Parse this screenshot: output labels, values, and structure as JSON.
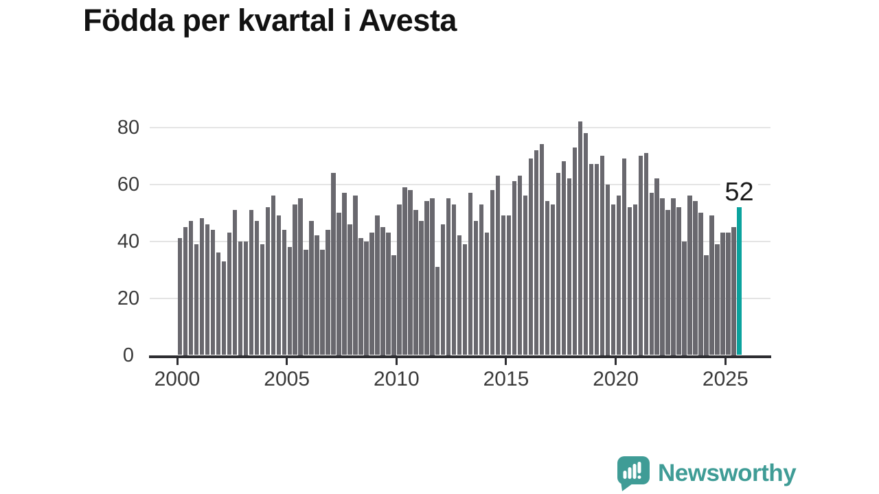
{
  "title": "Födda per kvartal i Avesta",
  "chart_data": {
    "type": "bar",
    "title": "Födda per kvartal i Avesta",
    "start_period": "2000-Q1",
    "end_period": "2025-Q3",
    "frequency": "quarterly",
    "values": [
      41,
      45,
      47,
      39,
      48,
      46,
      44,
      36,
      33,
      43,
      51,
      40,
      40,
      51,
      47,
      39,
      52,
      56,
      49,
      44,
      38,
      53,
      55,
      37,
      47,
      42,
      37,
      44,
      64,
      50,
      57,
      46,
      56,
      41,
      40,
      43,
      49,
      45,
      43,
      35,
      53,
      59,
      58,
      51,
      47,
      54,
      55,
      31,
      46,
      55,
      53,
      42,
      39,
      57,
      47,
      53,
      43,
      58,
      63,
      49,
      49,
      61,
      63,
      56,
      69,
      72,
      74,
      54,
      53,
      64,
      68,
      62,
      73,
      82,
      78,
      67,
      67,
      70,
      60,
      53,
      56,
      69,
      52,
      53,
      70,
      71,
      57,
      62,
      55,
      51,
      55,
      52,
      40,
      56,
      54,
      50,
      35,
      49,
      39,
      43,
      43,
      45,
      52
    ],
    "x_ticks": [
      "2000",
      "2005",
      "2010",
      "2015",
      "2020",
      "2025"
    ],
    "y_ticks": [
      0,
      20,
      40,
      60,
      80
    ],
    "ylim": [
      0,
      80
    ],
    "xlabel": "",
    "ylabel": "",
    "grid": true,
    "legend": false,
    "bar_color": "#69686e",
    "highlight": {
      "index": 102,
      "period": "2025-Q3",
      "value": 52,
      "label": "52",
      "color": "#0ba39e"
    }
  },
  "footer": {
    "brand": "Newsworthy",
    "brand_color": "#3f9c96",
    "logo_icon": "speech-bubble-bar-chart-icon"
  }
}
